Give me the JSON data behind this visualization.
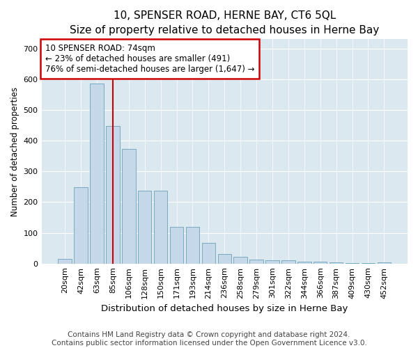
{
  "title": "10, SPENSER ROAD, HERNE BAY, CT6 5QL",
  "subtitle": "Size of property relative to detached houses in Herne Bay",
  "xlabel": "Distribution of detached houses by size in Herne Bay",
  "ylabel": "Number of detached properties",
  "categories": [
    "20sqm",
    "42sqm",
    "63sqm",
    "85sqm",
    "106sqm",
    "128sqm",
    "150sqm",
    "171sqm",
    "193sqm",
    "214sqm",
    "236sqm",
    "258sqm",
    "279sqm",
    "301sqm",
    "322sqm",
    "344sqm",
    "366sqm",
    "387sqm",
    "409sqm",
    "430sqm",
    "452sqm"
  ],
  "values": [
    15,
    248,
    585,
    448,
    373,
    238,
    238,
    120,
    120,
    67,
    30,
    22,
    12,
    10,
    10,
    5,
    5,
    3,
    2,
    2,
    4
  ],
  "bar_color": "#c5d8ea",
  "bar_edge_color": "#7aaabf",
  "property_line_x": 3.0,
  "annotation_text_line1": "10 SPENSER ROAD: 74sqm",
  "annotation_text_line2": "← 23% of detached houses are smaller (491)",
  "annotation_text_line3": "76% of semi-detached houses are larger (1,647) →",
  "annotation_box_facecolor": "#ffffff",
  "annotation_box_edgecolor": "#cc0000",
  "property_line_color": "#cc0000",
  "ylim": [
    0,
    730
  ],
  "yticks": [
    0,
    100,
    200,
    300,
    400,
    500,
    600,
    700
  ],
  "footer_line1": "Contains HM Land Registry data © Crown copyright and database right 2024.",
  "footer_line2": "Contains public sector information licensed under the Open Government Licence v3.0.",
  "fig_facecolor": "#ffffff",
  "plot_facecolor": "#dce8f0",
  "grid_color": "#ffffff",
  "title_fontsize": 11,
  "subtitle_fontsize": 10,
  "xlabel_fontsize": 9.5,
  "ylabel_fontsize": 8.5,
  "tick_fontsize": 8,
  "annotation_fontsize": 8.5,
  "footer_fontsize": 7.5
}
